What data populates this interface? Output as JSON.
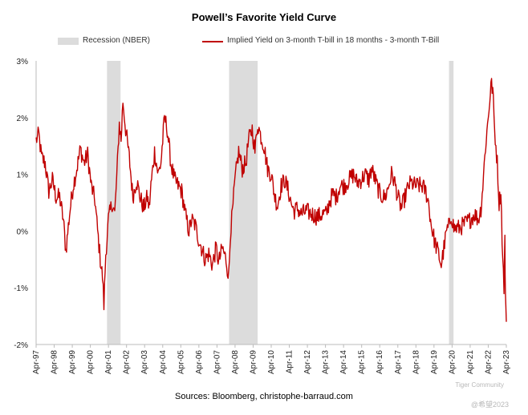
{
  "chart_data": {
    "type": "line",
    "title": "Powell’s Favorite Yield Curve",
    "source": "Sources: Bloomberg, christophe-barraud.com",
    "xlabel": "",
    "ylabel": "",
    "ylim": [
      -2,
      3
    ],
    "y_ticks": [
      3,
      2,
      1,
      0,
      -1,
      -2
    ],
    "y_tick_labels": [
      "3%",
      "2%",
      "1%",
      "0%",
      "-1%",
      "-2%"
    ],
    "x_start_year": 1997.25,
    "x_end_year": 2023.25,
    "x_tick_labels": [
      "Apr-97",
      "Apr-98",
      "Apr-99",
      "Apr-00",
      "Apr-01",
      "Apr-02",
      "Apr-03",
      "Apr-04",
      "Apr-05",
      "Apr-06",
      "Apr-07",
      "Apr-08",
      "Apr-09",
      "Apr-10",
      "Apr-11",
      "Apr-12",
      "Apr-13",
      "Apr-14",
      "Apr-15",
      "Apr-16",
      "Apr-17",
      "Apr-18",
      "Apr-19",
      "Apr-20",
      "Apr-21",
      "Apr-22",
      "Apr-23"
    ],
    "legend": [
      {
        "label": "Recession (NBER)",
        "color": "#dcdcdc"
      },
      {
        "label": "Implied Yield on 3-month T-bill in 18 months - 3-month T-Bill",
        "color": "#c00000"
      }
    ],
    "recessions": [
      {
        "start": 2001.17,
        "end": 2001.92
      },
      {
        "start": 2007.92,
        "end": 2009.5
      },
      {
        "start": 2020.08,
        "end": 2020.33
      }
    ],
    "series": [
      {
        "name": "Implied Yield on 3-month T-bill in 18 months - 3-month T-Bill",
        "color": "#c00000",
        "points": [
          [
            1997.25,
            1.6
          ],
          [
            1997.4,
            1.7
          ],
          [
            1997.55,
            1.3
          ],
          [
            1997.75,
            1.2
          ],
          [
            1997.95,
            0.7
          ],
          [
            1998.15,
            0.9
          ],
          [
            1998.35,
            0.6
          ],
          [
            1998.55,
            0.6
          ],
          [
            1998.75,
            0.2
          ],
          [
            1998.9,
            -0.35
          ],
          [
            1999.1,
            0.3
          ],
          [
            1999.3,
            0.8
          ],
          [
            1999.5,
            1.1
          ],
          [
            1999.7,
            1.45
          ],
          [
            1999.9,
            1.2
          ],
          [
            2000.1,
            1.35
          ],
          [
            2000.3,
            0.8
          ],
          [
            2000.5,
            0.55
          ],
          [
            2000.65,
            0.0
          ],
          [
            2000.8,
            -0.5
          ],
          [
            2000.92,
            -0.8
          ],
          [
            2001.0,
            -1.3
          ],
          [
            2001.1,
            -0.4
          ],
          [
            2001.25,
            0.2
          ],
          [
            2001.45,
            0.5
          ],
          [
            2001.6,
            0.3
          ],
          [
            2001.75,
            1.2
          ],
          [
            2001.85,
            1.9
          ],
          [
            2001.95,
            1.6
          ],
          [
            2002.05,
            2.3
          ],
          [
            2002.2,
            1.8
          ],
          [
            2002.4,
            1.3
          ],
          [
            2002.6,
            0.6
          ],
          [
            2002.8,
            0.9
          ],
          [
            2003.0,
            0.6
          ],
          [
            2003.2,
            0.4
          ],
          [
            2003.4,
            0.6
          ],
          [
            2003.5,
            0.4
          ],
          [
            2003.6,
            0.8
          ],
          [
            2003.8,
            1.4
          ],
          [
            2004.0,
            1.0
          ],
          [
            2004.15,
            1.2
          ],
          [
            2004.35,
            2.0
          ],
          [
            2004.5,
            1.8
          ],
          [
            2004.7,
            1.2
          ],
          [
            2004.9,
            0.9
          ],
          [
            2005.1,
            0.8
          ],
          [
            2005.3,
            0.7
          ],
          [
            2005.5,
            0.3
          ],
          [
            2005.7,
            0.0
          ],
          [
            2005.85,
            0.2
          ],
          [
            2006.05,
            0.1
          ],
          [
            2006.2,
            -0.1
          ],
          [
            2006.4,
            -0.3
          ],
          [
            2006.6,
            -0.5
          ],
          [
            2006.8,
            -0.4
          ],
          [
            2007.0,
            -0.6
          ],
          [
            2007.2,
            -0.3
          ],
          [
            2007.35,
            -0.55
          ],
          [
            2007.55,
            -0.3
          ],
          [
            2007.75,
            -0.5
          ],
          [
            2007.9,
            -0.8
          ],
          [
            2008.0,
            0.0
          ],
          [
            2008.1,
            0.3
          ],
          [
            2008.25,
            0.9
          ],
          [
            2008.45,
            1.4
          ],
          [
            2008.65,
            1.1
          ],
          [
            2008.85,
            1.2
          ],
          [
            2009.0,
            1.6
          ],
          [
            2009.2,
            1.8
          ],
          [
            2009.35,
            1.4
          ],
          [
            2009.5,
            1.9
          ],
          [
            2009.65,
            1.7
          ],
          [
            2009.85,
            1.5
          ],
          [
            2010.05,
            1.1
          ],
          [
            2010.25,
            1.0
          ],
          [
            2010.45,
            0.6
          ],
          [
            2010.6,
            0.45
          ],
          [
            2010.8,
            0.8
          ],
          [
            2011.0,
            0.9
          ],
          [
            2011.2,
            0.7
          ],
          [
            2011.35,
            0.5
          ],
          [
            2011.5,
            0.35
          ],
          [
            2011.7,
            0.4
          ],
          [
            2011.9,
            0.3
          ],
          [
            2012.2,
            0.35
          ],
          [
            2012.5,
            0.3
          ],
          [
            2012.8,
            0.25
          ],
          [
            2013.1,
            0.3
          ],
          [
            2013.3,
            0.3
          ],
          [
            2013.45,
            0.5
          ],
          [
            2013.65,
            0.65
          ],
          [
            2013.85,
            0.6
          ],
          [
            2014.05,
            0.8
          ],
          [
            2014.3,
            0.8
          ],
          [
            2014.55,
            0.9
          ],
          [
            2014.8,
            1.0
          ],
          [
            2015.0,
            0.85
          ],
          [
            2015.2,
            0.9
          ],
          [
            2015.45,
            1.0
          ],
          [
            2015.65,
            0.9
          ],
          [
            2015.8,
            1.1
          ],
          [
            2016.0,
            0.9
          ],
          [
            2016.2,
            0.7
          ],
          [
            2016.4,
            0.6
          ],
          [
            2016.55,
            0.6
          ],
          [
            2016.75,
            0.8
          ],
          [
            2016.9,
            1.0
          ],
          [
            2017.05,
            0.9
          ],
          [
            2017.25,
            0.6
          ],
          [
            2017.45,
            0.4
          ],
          [
            2017.65,
            0.6
          ],
          [
            2017.85,
            0.8
          ],
          [
            2018.0,
            0.85
          ],
          [
            2018.2,
            0.8
          ],
          [
            2018.4,
            0.8
          ],
          [
            2018.6,
            0.8
          ],
          [
            2018.8,
            0.7
          ],
          [
            2018.95,
            0.5
          ],
          [
            2019.1,
            0.1
          ],
          [
            2019.3,
            -0.2
          ],
          [
            2019.5,
            -0.4
          ],
          [
            2019.65,
            -0.6
          ],
          [
            2019.8,
            -0.3
          ],
          [
            2019.95,
            0.0
          ],
          [
            2020.1,
            0.1
          ],
          [
            2020.2,
            0.3
          ],
          [
            2020.35,
            0.05
          ],
          [
            2020.6,
            0.05
          ],
          [
            2020.85,
            0.1
          ],
          [
            2021.05,
            0.15
          ],
          [
            2021.25,
            0.2
          ],
          [
            2021.5,
            0.3
          ],
          [
            2021.7,
            0.2
          ],
          [
            2021.85,
            0.4
          ],
          [
            2021.95,
            0.8
          ],
          [
            2022.1,
            1.5
          ],
          [
            2022.25,
            2.0
          ],
          [
            2022.4,
            2.6
          ],
          [
            2022.5,
            2.5
          ],
          [
            2022.6,
            1.8
          ],
          [
            2022.75,
            1.2
          ],
          [
            2022.85,
            0.5
          ],
          [
            2022.95,
            0.7
          ],
          [
            2023.05,
            -0.5
          ],
          [
            2023.12,
            -1.0
          ],
          [
            2023.17,
            -0.2
          ],
          [
            2023.2,
            -1.1
          ],
          [
            2023.25,
            -1.6
          ]
        ]
      }
    ]
  },
  "watermark": {
    "line1": "Tiger Community",
    "line2": "@希望2023"
  }
}
